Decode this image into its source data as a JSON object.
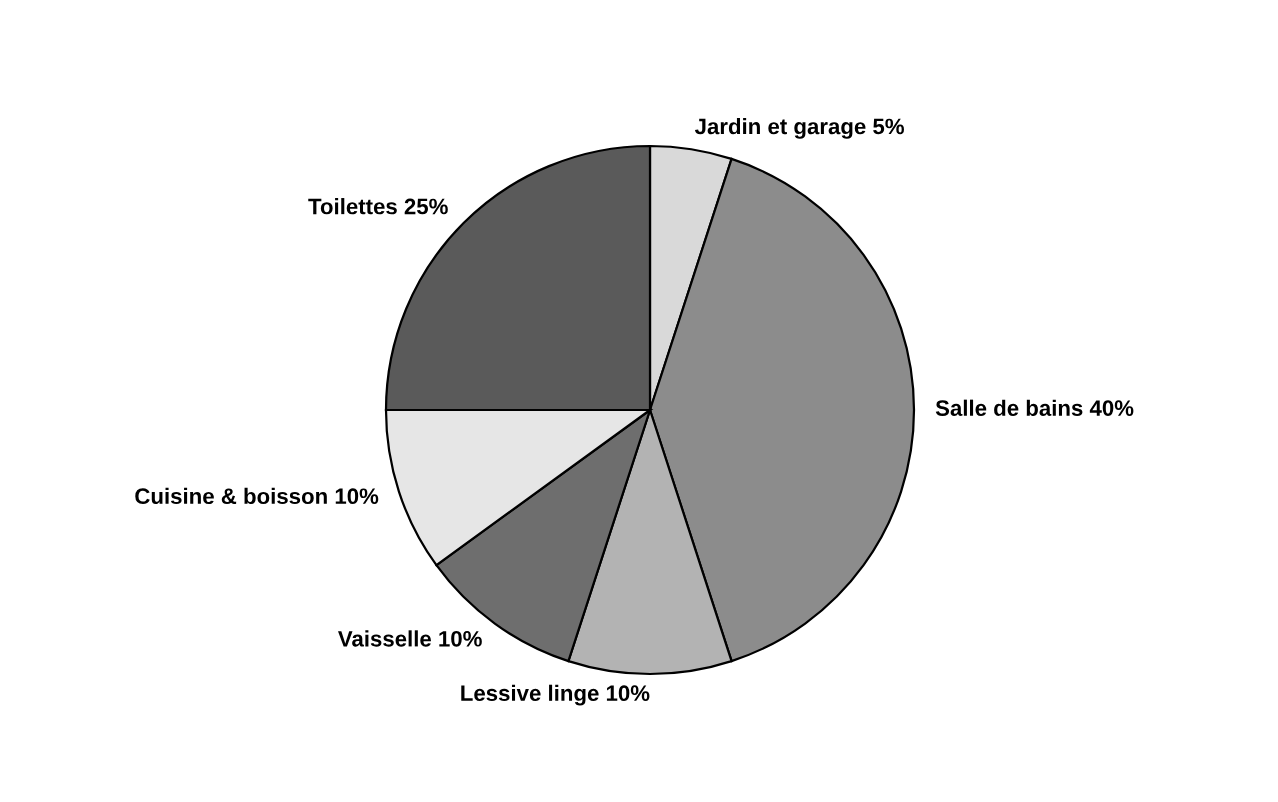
{
  "chart_data": {
    "type": "pie",
    "categories": [
      "Jardin et garage",
      "Salle de bains",
      "Lessive linge",
      "Vaisselle",
      "Cuisine & boisson",
      "Toilettes"
    ],
    "values": [
      5,
      40,
      10,
      10,
      10,
      25
    ],
    "value_labels": [
      "5%",
      "40%",
      "10%",
      "10%",
      "10%",
      "25%"
    ],
    "colors": [
      "#d9d9d9",
      "#8c8c8c",
      "#b3b3b3",
      "#6e6e6e",
      "#e6e6e6",
      "#5a5a5a"
    ]
  }
}
